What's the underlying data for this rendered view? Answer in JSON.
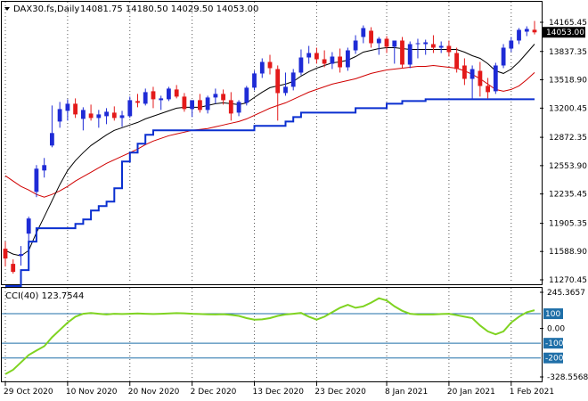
{
  "header": {
    "symbol": "DAX30.fs,Daily",
    "ohlc": "14081.75 14180.50 14029.50 14053.00"
  },
  "colors": {
    "bull": "#1e2bd6",
    "bear": "#e31a1a",
    "ma_fast": "#000000",
    "ma_slow": "#d00000",
    "stop": "#0a2fd0",
    "cci_line": "#7fd321",
    "cci_level": "#1f6fa8"
  },
  "chart_data": [
    {
      "type": "candlestick",
      "title": "DAX30.fs,Daily",
      "y_ticks": [
        "14165.45",
        "13837.35",
        "13518.90",
        "13200.45",
        "12872.35",
        "12553.90",
        "12235.45",
        "11905.35",
        "11588.90",
        "11270.45"
      ],
      "ylim": [
        11270.45,
        14165.45
      ],
      "last_price": "14053.00",
      "x_ticks": [
        "29 Oct 2020",
        "10 Nov 2020",
        "20 Nov 2020",
        "2 Dec 2020",
        "13 Dec 2020",
        "23 Dec 2020",
        "8 Jan 2021",
        "20 Jan 2021",
        "1 Feb 2021"
      ],
      "candles": [
        {
          "o": 11620,
          "h": 11700,
          "l": 11420,
          "c": 11510
        },
        {
          "o": 11450,
          "h": 11500,
          "l": 11340,
          "c": 11360
        },
        {
          "o": 11540,
          "h": 11650,
          "l": 11430,
          "c": 11560
        },
        {
          "o": 11790,
          "h": 11980,
          "l": 11700,
          "c": 11960
        },
        {
          "o": 12260,
          "h": 12560,
          "l": 12200,
          "c": 12520
        },
        {
          "o": 12500,
          "h": 12640,
          "l": 12420,
          "c": 12560
        },
        {
          "o": 12780,
          "h": 13230,
          "l": 12760,
          "c": 12920
        },
        {
          "o": 13050,
          "h": 13270,
          "l": 12980,
          "c": 13190
        },
        {
          "o": 13170,
          "h": 13300,
          "l": 13060,
          "c": 13250
        },
        {
          "o": 13250,
          "h": 13310,
          "l": 13090,
          "c": 13130
        },
        {
          "o": 13080,
          "h": 13210,
          "l": 12950,
          "c": 13180
        },
        {
          "o": 13140,
          "h": 13240,
          "l": 13060,
          "c": 13090
        },
        {
          "o": 13090,
          "h": 13180,
          "l": 12980,
          "c": 13130
        },
        {
          "o": 13110,
          "h": 13200,
          "l": 13020,
          "c": 13160
        },
        {
          "o": 13150,
          "h": 13220,
          "l": 13060,
          "c": 13090
        },
        {
          "o": 13090,
          "h": 13170,
          "l": 12990,
          "c": 13120
        },
        {
          "o": 13110,
          "h": 13330,
          "l": 13090,
          "c": 13290
        },
        {
          "o": 13280,
          "h": 13360,
          "l": 13210,
          "c": 13260
        },
        {
          "o": 13250,
          "h": 13420,
          "l": 13230,
          "c": 13380
        },
        {
          "o": 13390,
          "h": 13440,
          "l": 13200,
          "c": 13300
        },
        {
          "o": 13290,
          "h": 13340,
          "l": 13180,
          "c": 13310
        },
        {
          "o": 13300,
          "h": 13440,
          "l": 13280,
          "c": 13420
        },
        {
          "o": 13410,
          "h": 13460,
          "l": 13310,
          "c": 13330
        },
        {
          "o": 13330,
          "h": 13370,
          "l": 13160,
          "c": 13190
        },
        {
          "o": 13190,
          "h": 13280,
          "l": 13100,
          "c": 13290
        },
        {
          "o": 13290,
          "h": 13360,
          "l": 13150,
          "c": 13180
        },
        {
          "o": 13180,
          "h": 13340,
          "l": 13140,
          "c": 13320
        },
        {
          "o": 13320,
          "h": 13420,
          "l": 13250,
          "c": 13360
        },
        {
          "o": 13360,
          "h": 13410,
          "l": 13240,
          "c": 13290
        },
        {
          "o": 13290,
          "h": 13380,
          "l": 13060,
          "c": 13140
        },
        {
          "o": 13150,
          "h": 13290,
          "l": 13110,
          "c": 13270
        },
        {
          "o": 13260,
          "h": 13450,
          "l": 13230,
          "c": 13430
        },
        {
          "o": 13430,
          "h": 13620,
          "l": 13400,
          "c": 13590
        },
        {
          "o": 13590,
          "h": 13760,
          "l": 13540,
          "c": 13720
        },
        {
          "o": 13720,
          "h": 13800,
          "l": 13580,
          "c": 13650
        },
        {
          "o": 13640,
          "h": 13680,
          "l": 13060,
          "c": 13370
        },
        {
          "o": 13370,
          "h": 13600,
          "l": 13340,
          "c": 13440
        },
        {
          "o": 13440,
          "h": 13640,
          "l": 13400,
          "c": 13600
        },
        {
          "o": 13600,
          "h": 13860,
          "l": 13570,
          "c": 13770
        },
        {
          "o": 13770,
          "h": 13900,
          "l": 13700,
          "c": 13820
        },
        {
          "o": 13820,
          "h": 13880,
          "l": 13700,
          "c": 13750
        },
        {
          "o": 13750,
          "h": 13850,
          "l": 13660,
          "c": 13700
        },
        {
          "o": 13700,
          "h": 13830,
          "l": 13640,
          "c": 13780
        },
        {
          "o": 13780,
          "h": 13870,
          "l": 13600,
          "c": 13660
        },
        {
          "o": 13660,
          "h": 13880,
          "l": 13620,
          "c": 13850
        },
        {
          "o": 13850,
          "h": 14020,
          "l": 13810,
          "c": 13960
        },
        {
          "o": 14000,
          "h": 14130,
          "l": 13930,
          "c": 14100
        },
        {
          "o": 14070,
          "h": 14110,
          "l": 13880,
          "c": 13930
        },
        {
          "o": 13930,
          "h": 14000,
          "l": 13800,
          "c": 13980
        },
        {
          "o": 13980,
          "h": 14010,
          "l": 13820,
          "c": 13890
        },
        {
          "o": 13890,
          "h": 13950,
          "l": 13700,
          "c": 13960
        },
        {
          "o": 13960,
          "h": 14000,
          "l": 13650,
          "c": 13690
        },
        {
          "o": 13690,
          "h": 13950,
          "l": 13650,
          "c": 13920
        },
        {
          "o": 13920,
          "h": 13980,
          "l": 13760,
          "c": 13930
        },
        {
          "o": 13920,
          "h": 13970,
          "l": 13800,
          "c": 13940
        },
        {
          "o": 13920,
          "h": 14020,
          "l": 13820,
          "c": 13880
        },
        {
          "o": 13880,
          "h": 13950,
          "l": 13820,
          "c": 13900
        },
        {
          "o": 13900,
          "h": 13960,
          "l": 13780,
          "c": 13830
        },
        {
          "o": 13820,
          "h": 13880,
          "l": 13600,
          "c": 13640
        },
        {
          "o": 13680,
          "h": 13760,
          "l": 13460,
          "c": 13530
        },
        {
          "o": 13530,
          "h": 13680,
          "l": 13300,
          "c": 13640
        },
        {
          "o": 13620,
          "h": 13720,
          "l": 13330,
          "c": 13450
        },
        {
          "o": 13450,
          "h": 13540,
          "l": 13310,
          "c": 13380
        },
        {
          "o": 13390,
          "h": 13710,
          "l": 13360,
          "c": 13680
        },
        {
          "o": 13680,
          "h": 13920,
          "l": 13650,
          "c": 13880
        },
        {
          "o": 13870,
          "h": 14000,
          "l": 13830,
          "c": 13960
        },
        {
          "o": 13960,
          "h": 14100,
          "l": 13920,
          "c": 14080
        },
        {
          "o": 14060,
          "h": 14120,
          "l": 14010,
          "c": 14090
        },
        {
          "o": 14081.75,
          "h": 14180.5,
          "l": 14029.5,
          "c": 14053.0
        }
      ],
      "ma_fast": [
        11600,
        11560,
        11540,
        11600,
        11800,
        11980,
        12160,
        12340,
        12500,
        12610,
        12700,
        12780,
        12840,
        12900,
        12950,
        12980,
        13010,
        13040,
        13080,
        13110,
        13140,
        13170,
        13200,
        13210,
        13210,
        13210,
        13230,
        13250,
        13260,
        13250,
        13240,
        13260,
        13320,
        13380,
        13430,
        13450,
        13470,
        13500,
        13560,
        13610,
        13650,
        13680,
        13710,
        13720,
        13740,
        13780,
        13830,
        13850,
        13870,
        13880,
        13880,
        13870,
        13860,
        13860,
        13860,
        13860,
        13860,
        13860,
        13860,
        13830,
        13790,
        13760,
        13700,
        13620,
        13590,
        13640,
        13720,
        13820,
        13920
      ],
      "ma_slow": [
        12440,
        12380,
        12320,
        12280,
        12230,
        12200,
        12230,
        12270,
        12320,
        12380,
        12430,
        12480,
        12530,
        12580,
        12620,
        12660,
        12700,
        12740,
        12790,
        12830,
        12860,
        12890,
        12910,
        12930,
        12950,
        12960,
        12970,
        12990,
        13010,
        13030,
        13050,
        13080,
        13120,
        13160,
        13200,
        13230,
        13260,
        13300,
        13340,
        13380,
        13410,
        13440,
        13470,
        13490,
        13510,
        13530,
        13560,
        13590,
        13610,
        13630,
        13640,
        13650,
        13660,
        13670,
        13670,
        13680,
        13670,
        13660,
        13650,
        13620,
        13580,
        13530,
        13470,
        13410,
        13390,
        13410,
        13450,
        13520,
        13600
      ],
      "stop_line": [
        11200,
        11200,
        11380,
        11700,
        11850,
        11850,
        11850,
        11850,
        11850,
        11900,
        11950,
        12050,
        12100,
        12150,
        12300,
        12600,
        12700,
        12800,
        12900,
        12950,
        12950,
        12950,
        12950,
        12950,
        12950,
        12950,
        12950,
        12950,
        12950,
        12950,
        12950,
        12950,
        13000,
        13000,
        13000,
        13000,
        13050,
        13100,
        13150,
        13150,
        13150,
        13150,
        13150,
        13150,
        13150,
        13200,
        13200,
        13200,
        13200,
        13250,
        13250,
        13280,
        13280,
        13280,
        13300,
        13300,
        13300,
        13300,
        13300,
        13300,
        13300,
        13300,
        13300,
        13300,
        13300,
        13300,
        13300,
        13300,
        13300
      ]
    },
    {
      "type": "line",
      "title": "CCI(40) 123.7544",
      "y_ticks": [
        "245.3657",
        "100",
        "0.00",
        "-100",
        "-200",
        "-328.5568"
      ],
      "ylim": [
        -328.5568,
        245.3657
      ],
      "levels": [
        100,
        -100,
        -200
      ],
      "level_labels": [
        "100",
        "-100",
        "-200"
      ],
      "x_ticks": [
        "29 Oct 2020",
        "10 Nov 2020",
        "20 Nov 2020",
        "2 Dec 2020",
        "13 Dec 2020",
        "23 Dec 2020",
        "8 Jan 2021",
        "20 Jan 2021",
        "1 Feb 2021"
      ],
      "values": [
        -310,
        -280,
        -230,
        -180,
        -150,
        -120,
        -60,
        -10,
        40,
        80,
        100,
        105,
        100,
        95,
        100,
        98,
        100,
        102,
        100,
        98,
        100,
        102,
        104,
        103,
        100,
        98,
        96,
        95,
        97,
        92,
        85,
        70,
        60,
        62,
        70,
        85,
        95,
        100,
        105,
        80,
        60,
        80,
        110,
        140,
        160,
        140,
        150,
        175,
        205,
        190,
        150,
        120,
        100,
        95,
        95,
        95,
        98,
        100,
        90,
        80,
        70,
        20,
        -20,
        -40,
        -20,
        40,
        80,
        110,
        123.75
      ]
    }
  ]
}
